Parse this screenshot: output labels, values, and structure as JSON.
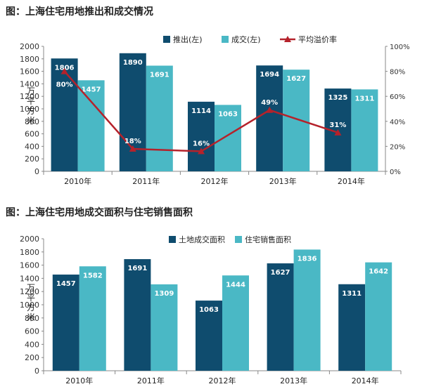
{
  "charts_meta": {
    "title1": "图：上海住宅用地推出和成交情况",
    "title2": "图：上海住宅用地成交面积与住宅销售面积",
    "colors": {
      "dark": "#0f4c6e",
      "light": "#4ab8c5",
      "line": "#b5222b"
    }
  },
  "chart_data": [
    {
      "type": "bar",
      "title": "图：上海住宅用地推出和成交情况",
      "categories": [
        "2010年",
        "2011年",
        "2012年",
        "2013年",
        "2014年"
      ],
      "series": [
        {
          "name": "推出(左)",
          "type": "bar",
          "axis": "left",
          "color": "#0f4c6e",
          "values": [
            1806,
            1890,
            1114,
            1694,
            1325
          ]
        },
        {
          "name": "成交(左)",
          "type": "bar",
          "axis": "left",
          "color": "#4ab8c5",
          "values": [
            1457,
            1691,
            1063,
            1627,
            1311
          ]
        },
        {
          "name": "平均溢价率",
          "type": "line",
          "axis": "right",
          "color": "#b5222b",
          "values": [
            80,
            18,
            16,
            49,
            31
          ],
          "labels": [
            "80%",
            "18%",
            "16%",
            "49%",
            "31%"
          ]
        }
      ],
      "ylabel": "万平方米",
      "ylim": [
        0,
        2000
      ],
      "yticks": [
        "0",
        "200",
        "400",
        "600",
        "800",
        "1000",
        "1200",
        "1400",
        "1600",
        "1800",
        "2000"
      ],
      "y2lim": [
        0,
        100
      ],
      "y2ticks": [
        "0%",
        "20%",
        "40%",
        "60%",
        "80%",
        "100%"
      ],
      "legend": "top",
      "grid": false
    },
    {
      "type": "bar",
      "title": "图：上海住宅用地成交面积与住宅销售面积",
      "categories": [
        "2010年",
        "2011年",
        "2012年",
        "2013年",
        "2014年"
      ],
      "series": [
        {
          "name": "土地成交面积",
          "color": "#0f4c6e",
          "values": [
            1457,
            1691,
            1063,
            1627,
            1311
          ]
        },
        {
          "name": "住宅销售面积",
          "color": "#4ab8c5",
          "values": [
            1582,
            1309,
            1444,
            1836,
            1642
          ]
        }
      ],
      "ylabel": "万平方米",
      "ylim": [
        0,
        2000
      ],
      "yticks": [
        "0",
        "200",
        "400",
        "600",
        "800",
        "1000",
        "1200",
        "1400",
        "1600",
        "1800",
        "2000"
      ],
      "legend": "top",
      "grid": false
    }
  ]
}
